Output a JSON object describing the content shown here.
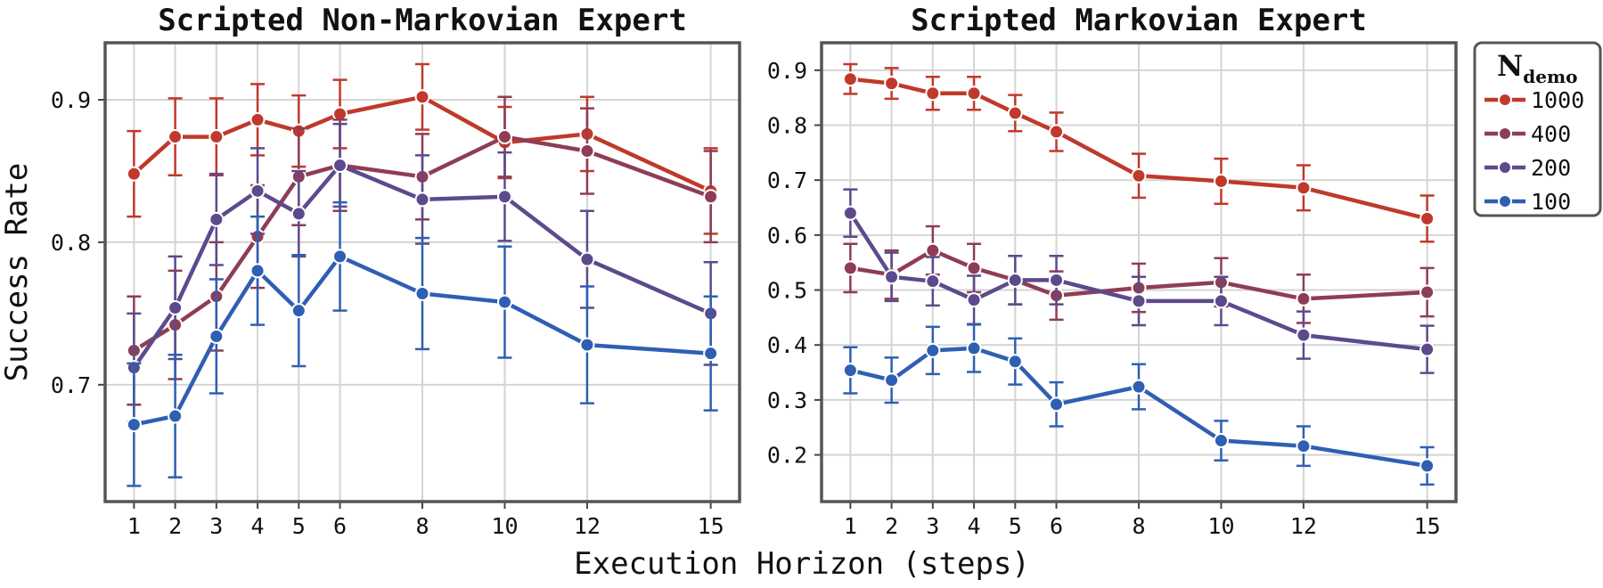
{
  "chart_data": [
    {
      "type": "line",
      "title": "Scripted Non-Markovian Expert",
      "xlabel": "",
      "ylabel": "Success Rate",
      "x": [
        1,
        2,
        3,
        4,
        5,
        6,
        8,
        10,
        12,
        15
      ],
      "xlim": [
        0.3,
        15.7
      ],
      "ylim": [
        0.618,
        0.94
      ],
      "yticks": [
        0.7,
        0.8,
        0.9
      ],
      "ytick_labels": [
        "0.7",
        "0.8",
        "0.9"
      ],
      "grid": true,
      "series": [
        {
          "name": "1000",
          "color": "#c0392b",
          "values": [
            0.848,
            0.874,
            0.874,
            0.886,
            0.878,
            0.89,
            0.902,
            0.87,
            0.876,
            0.836
          ],
          "err": [
            0.03,
            0.027,
            0.027,
            0.025,
            0.025,
            0.024,
            0.023,
            0.025,
            0.026,
            0.03
          ]
        },
        {
          "name": "400",
          "color": "#8e3d55",
          "values": [
            0.724,
            0.742,
            0.762,
            0.804,
            0.846,
            0.854,
            0.846,
            0.874,
            0.864,
            0.832
          ],
          "err": [
            0.038,
            0.038,
            0.038,
            0.036,
            0.034,
            0.032,
            0.03,
            0.028,
            0.03,
            0.032
          ]
        },
        {
          "name": "200",
          "color": "#5d4a8c",
          "values": [
            0.712,
            0.754,
            0.816,
            0.836,
            0.82,
            0.854,
            0.83,
            0.832,
            0.788,
            0.75
          ],
          "err": [
            0.038,
            0.036,
            0.032,
            0.03,
            0.03,
            0.029,
            0.031,
            0.031,
            0.034,
            0.036
          ]
        },
        {
          "name": "100",
          "color": "#2f5fb3",
          "values": [
            0.672,
            0.678,
            0.734,
            0.78,
            0.752,
            0.79,
            0.764,
            0.758,
            0.728,
            0.722
          ],
          "err": [
            0.043,
            0.043,
            0.04,
            0.038,
            0.039,
            0.038,
            0.039,
            0.039,
            0.041,
            0.04
          ]
        }
      ]
    },
    {
      "type": "line",
      "title": "Scripted Markovian Expert",
      "xlabel": "",
      "ylabel": "",
      "x": [
        1,
        2,
        3,
        4,
        5,
        6,
        8,
        10,
        12,
        15
      ],
      "xlim": [
        0.3,
        15.7
      ],
      "ylim": [
        0.115,
        0.95
      ],
      "yticks": [
        0.2,
        0.3,
        0.4,
        0.5,
        0.6,
        0.7,
        0.8,
        0.9
      ],
      "ytick_labels": [
        "0.2",
        "0.3",
        "0.4",
        "0.5",
        "0.6",
        "0.7",
        "0.8",
        "0.9"
      ],
      "grid": true,
      "series": [
        {
          "name": "1000",
          "color": "#c0392b",
          "values": [
            0.884,
            0.876,
            0.858,
            0.858,
            0.822,
            0.788,
            0.708,
            0.698,
            0.686,
            0.63
          ],
          "err": [
            0.027,
            0.028,
            0.03,
            0.03,
            0.033,
            0.035,
            0.04,
            0.041,
            0.041,
            0.042
          ]
        },
        {
          "name": "400",
          "color": "#8e3d55",
          "values": [
            0.54,
            0.528,
            0.572,
            0.54,
            0.518,
            0.49,
            0.504,
            0.514,
            0.484,
            0.496
          ],
          "err": [
            0.044,
            0.044,
            0.044,
            0.044,
            0.044,
            0.044,
            0.044,
            0.044,
            0.044,
            0.044
          ]
        },
        {
          "name": "200",
          "color": "#5d4a8c",
          "values": [
            0.64,
            0.524,
            0.516,
            0.482,
            0.518,
            0.518,
            0.48,
            0.48,
            0.418,
            0.392
          ],
          "err": [
            0.043,
            0.044,
            0.044,
            0.044,
            0.044,
            0.044,
            0.044,
            0.044,
            0.043,
            0.043
          ]
        },
        {
          "name": "100",
          "color": "#2f5fb3",
          "values": [
            0.354,
            0.336,
            0.39,
            0.394,
            0.37,
            0.292,
            0.324,
            0.226,
            0.216,
            0.18
          ],
          "err": [
            0.042,
            0.041,
            0.043,
            0.043,
            0.042,
            0.04,
            0.041,
            0.036,
            0.036,
            0.034
          ]
        }
      ]
    }
  ],
  "shared_xlabel": "Execution Horizon (steps)",
  "legend": {
    "title_main": "N",
    "title_sub": "demo",
    "placement": "upper right, outside",
    "items": [
      "1000",
      "400",
      "200",
      "100"
    ]
  }
}
